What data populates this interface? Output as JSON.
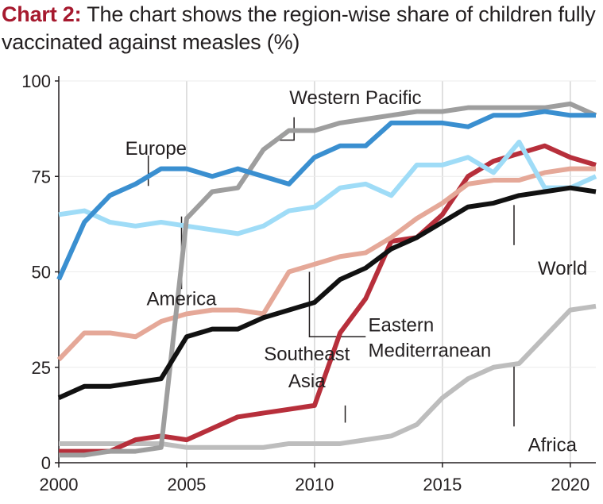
{
  "header": {
    "label": "Chart 2:",
    "text": "The chart shows the region-wise share of children fully vaccinated against measles (%)"
  },
  "chart_data": {
    "type": "line",
    "title": "Chart 2: The chart shows the region-wise share of children fully vaccinated against measles (%)",
    "xlabel": "",
    "ylabel": "",
    "xlim": [
      2000,
      2021
    ],
    "ylim": [
      0,
      100
    ],
    "x_ticks": [
      2000,
      2005,
      2010,
      2015,
      2020
    ],
    "y_ticks": [
      0,
      25,
      50,
      75,
      100
    ],
    "grid": "vertical",
    "x": [
      2000,
      2001,
      2002,
      2003,
      2004,
      2005,
      2006,
      2007,
      2008,
      2009,
      2010,
      2011,
      2012,
      2013,
      2014,
      2015,
      2016,
      2017,
      2018,
      2019,
      2020,
      2021
    ],
    "series": [
      {
        "name": "Africa",
        "color": "#bdbdbd",
        "values": [
          5,
          5,
          5,
          5,
          5,
          4,
          4,
          4,
          4,
          5,
          5,
          5,
          6,
          7,
          10,
          17,
          22,
          25,
          26,
          33,
          40,
          41
        ]
      },
      {
        "name": "Southeast Asia",
        "color": "#b72f3b",
        "values": [
          3,
          3,
          3,
          6,
          7,
          6,
          9,
          12,
          13,
          14,
          15,
          34,
          43,
          58,
          59,
          65,
          75,
          79,
          81,
          83,
          80,
          78
        ]
      },
      {
        "name": "Eastern Mediterranean",
        "color": "#e5a898",
        "values": [
          27,
          34,
          34,
          33,
          37,
          39,
          40,
          40,
          39,
          50,
          52,
          54,
          55,
          59,
          64,
          68,
          73,
          74,
          74,
          76,
          77,
          77
        ]
      },
      {
        "name": "America",
        "color": "#9fdcf7",
        "values": [
          65,
          66,
          63,
          62,
          63,
          62,
          61,
          60,
          62,
          66,
          67,
          72,
          73,
          70,
          78,
          78,
          80,
          76,
          84,
          72,
          72,
          75
        ]
      },
      {
        "name": "Western Pacific",
        "color": "#9e9e9e",
        "values": [
          2,
          2,
          3,
          3,
          4,
          64,
          71,
          72,
          82,
          87,
          87,
          89,
          90,
          91,
          92,
          92,
          93,
          93,
          93,
          93,
          94,
          91
        ]
      },
      {
        "name": "Europe",
        "color": "#3a8fd0",
        "values": [
          48,
          63,
          70,
          73,
          77,
          77,
          75,
          77,
          75,
          73,
          80,
          83,
          83,
          89,
          89,
          89,
          88,
          91,
          91,
          92,
          91,
          91
        ]
      },
      {
        "name": "World",
        "color": "#111111",
        "values": [
          17,
          20,
          20,
          21,
          22,
          33,
          35,
          35,
          38,
          40,
          42,
          48,
          51,
          56,
          59,
          63,
          67,
          68,
          70,
          71,
          72,
          71
        ]
      }
    ]
  }
}
